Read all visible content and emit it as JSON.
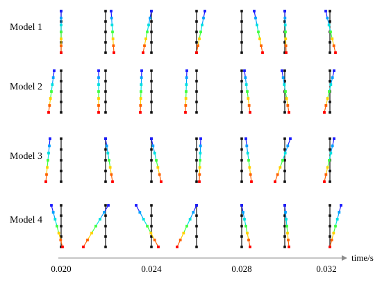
{
  "axis": {
    "label": "time/s",
    "tick_labels": [
      "0.020",
      "0.024",
      "0.028",
      "0.032"
    ]
  },
  "rows": [
    {
      "label": "Model 1",
      "snapshots": [
        {
          "dx_top": 0,
          "dx_bottom": 0
        },
        {
          "dx_top": 8,
          "dx_bottom": 12
        },
        {
          "dx_top": 0,
          "dx_bottom": -12
        },
        {
          "dx_top": 12,
          "dx_bottom": 0
        },
        {
          "dx_top": 18,
          "dx_bottom": 30
        },
        {
          "dx_top": 0,
          "dx_bottom": 2
        },
        {
          "dx_top": -6,
          "dx_bottom": 8
        }
      ]
    },
    {
      "label": "Model 2",
      "snapshots": [
        {
          "dx_top": -10,
          "dx_bottom": -18
        },
        {
          "dx_top": -10,
          "dx_bottom": -10
        },
        {
          "dx_top": -14,
          "dx_bottom": -16
        },
        {
          "dx_top": -14,
          "dx_bottom": -16
        },
        {
          "dx_top": 4,
          "dx_bottom": 12
        },
        {
          "dx_top": -4,
          "dx_bottom": 6
        },
        {
          "dx_top": 6,
          "dx_bottom": -8
        }
      ]
    },
    {
      "label": "Model 3",
      "snapshots": [
        {
          "dx_top": -16,
          "dx_bottom": -22
        },
        {
          "dx_top": 0,
          "dx_bottom": 10
        },
        {
          "dx_top": 0,
          "dx_bottom": 14
        },
        {
          "dx_top": 6,
          "dx_bottom": 4
        },
        {
          "dx_top": 6,
          "dx_bottom": 14
        },
        {
          "dx_top": 8,
          "dx_bottom": -14
        },
        {
          "dx_top": 6,
          "dx_bottom": -8
        }
      ]
    },
    {
      "label": "Model 4",
      "snapshots": [
        {
          "dx_top": -14,
          "dx_bottom": 2
        },
        {
          "dx_top": 4,
          "dx_bottom": -32
        },
        {
          "dx_top": -22,
          "dx_bottom": 10
        },
        {
          "dx_top": 0,
          "dx_bottom": -28
        },
        {
          "dx_top": 0,
          "dx_bottom": 12
        },
        {
          "dx_top": 0,
          "dx_bottom": 6
        },
        {
          "dx_top": 16,
          "dx_bottom": 0
        }
      ]
    }
  ],
  "colors": {
    "reference": "#111111",
    "gradient": [
      "#1a1aff",
      "#00a0ff",
      "#00e0e0",
      "#40ff40",
      "#ffd000",
      "#ff6000",
      "#ff0000"
    ]
  }
}
